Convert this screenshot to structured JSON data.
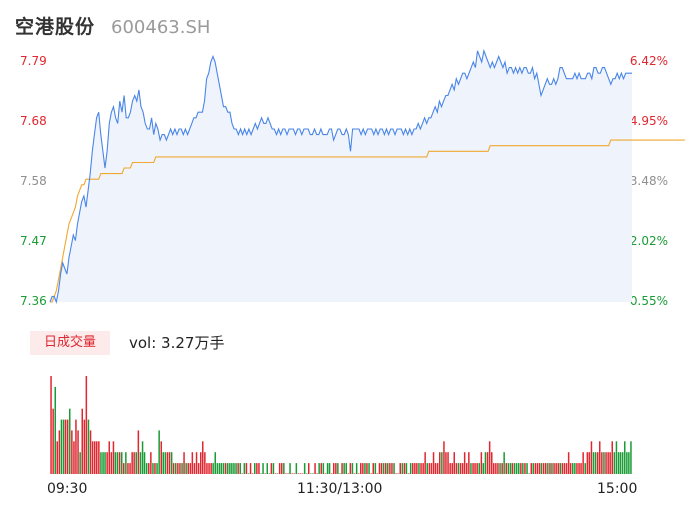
{
  "header": {
    "name": "空港股份",
    "code": "600463.SH"
  },
  "price_axis": {
    "left_labels": [
      "7.79",
      "7.68",
      "7.58",
      "7.47",
      "7.36"
    ],
    "right_labels": [
      "6.42%",
      "4.95%",
      "3.48%",
      "2.02%",
      "0.55%"
    ],
    "colors": [
      "red",
      "red",
      "gray",
      "green",
      "green"
    ]
  },
  "volume_panel": {
    "badge": "日成交量",
    "vol_label": "vol: 3.27万手"
  },
  "time_axis": {
    "labels": [
      "09:30",
      "11:30/13:00",
      "15:00"
    ]
  },
  "colors": {
    "price_line": "#4a86e8",
    "avg_line": "#f0a830",
    "area_fill": "#eef3fc",
    "up": "#e0262f",
    "down": "#1a9b35"
  },
  "chart_data": [
    {
      "type": "line",
      "x_range": [
        "09:30",
        "15:00"
      ],
      "ylim": [
        7.36,
        7.79
      ],
      "series": [
        {
          "role": "price",
          "values": [
            7.36,
            7.37,
            7.37,
            7.36,
            7.38,
            7.41,
            7.43,
            7.42,
            7.41,
            7.44,
            7.46,
            7.48,
            7.47,
            7.5,
            7.52,
            7.54,
            7.55,
            7.53,
            7.56,
            7.59,
            7.63,
            7.66,
            7.69,
            7.7,
            7.66,
            7.63,
            7.6,
            7.63,
            7.68,
            7.7,
            7.71,
            7.69,
            7.68,
            7.72,
            7.7,
            7.73,
            7.69,
            7.69,
            7.7,
            7.72,
            7.73,
            7.72,
            7.74,
            7.71,
            7.7,
            7.68,
            7.67,
            7.67,
            7.69,
            7.66,
            7.68,
            7.67,
            7.65,
            7.66,
            7.66,
            7.65,
            7.66,
            7.67,
            7.66,
            7.67,
            7.66,
            7.67,
            7.67,
            7.66,
            7.67,
            7.66,
            7.67,
            7.68,
            7.69,
            7.69,
            7.7,
            7.7,
            7.7,
            7.72,
            7.76,
            7.77,
            7.79,
            7.8,
            7.79,
            7.77,
            7.75,
            7.73,
            7.71,
            7.71,
            7.7,
            7.7,
            7.68,
            7.67,
            7.67,
            7.66,
            7.67,
            7.66,
            7.67,
            7.66,
            7.67,
            7.66,
            7.67,
            7.68,
            7.67,
            7.68,
            7.69,
            7.68,
            7.68,
            7.69,
            7.68,
            7.67,
            7.67,
            7.66,
            7.67,
            7.66,
            7.67,
            7.67,
            7.66,
            7.67,
            7.67,
            7.67,
            7.66,
            7.67,
            7.67,
            7.66,
            7.67,
            7.67,
            7.67,
            7.66,
            7.66,
            7.67,
            7.66,
            7.66,
            7.67,
            7.66,
            7.66,
            7.66,
            7.67,
            7.67,
            7.65,
            7.66,
            7.67,
            7.67,
            7.66,
            7.66,
            7.67,
            7.66,
            7.63,
            7.67,
            7.67,
            7.67,
            7.67,
            7.66,
            7.67,
            7.66,
            7.67,
            7.67,
            7.67,
            7.66,
            7.67,
            7.66,
            7.67,
            7.67,
            7.66,
            7.67,
            7.66,
            7.67,
            7.67,
            7.66,
            7.67,
            7.67,
            7.67,
            7.66,
            7.67,
            7.66,
            7.67,
            7.66,
            7.67,
            7.67,
            7.68,
            7.67,
            7.68,
            7.69,
            7.68,
            7.69,
            7.69,
            7.7,
            7.71,
            7.7,
            7.72,
            7.71,
            7.72,
            7.73,
            7.73,
            7.74,
            7.75,
            7.74,
            7.76,
            7.75,
            7.76,
            7.77,
            7.77,
            7.76,
            7.77,
            7.78,
            7.79,
            7.78,
            7.81,
            7.8,
            7.79,
            7.81,
            7.8,
            7.79,
            7.78,
            7.79,
            7.78,
            7.79,
            7.8,
            7.79,
            7.78,
            7.79,
            7.77,
            7.78,
            7.78,
            7.77,
            7.78,
            7.77,
            7.78,
            7.77,
            7.78,
            7.78,
            7.77,
            7.77,
            7.78,
            7.76,
            7.77,
            7.75,
            7.73,
            7.74,
            7.75,
            7.76,
            7.75,
            7.75,
            7.76,
            7.75,
            7.76,
            7.78,
            7.78,
            7.77,
            7.76,
            7.76,
            7.76,
            7.76,
            7.77,
            7.76,
            7.77,
            7.76,
            7.76,
            7.76,
            7.77,
            7.77,
            7.76,
            7.78,
            7.78,
            7.77,
            7.77,
            7.78,
            7.78,
            7.77,
            7.76,
            7.75,
            7.76,
            7.76,
            7.77,
            7.76,
            7.77,
            7.76,
            7.77,
            7.77,
            7.77,
            7.77
          ]
        },
        {
          "role": "average",
          "values": [
            7.36,
            7.36,
            7.37,
            7.38,
            7.4,
            7.42,
            7.44,
            7.46,
            7.48,
            7.5,
            7.51,
            7.52,
            7.53,
            7.55,
            7.56,
            7.57,
            7.57,
            7.58,
            7.58,
            7.58,
            7.58,
            7.58,
            7.58,
            7.58,
            7.59,
            7.59,
            7.59,
            7.59,
            7.59,
            7.59,
            7.59,
            7.59,
            7.59,
            7.59,
            7.59,
            7.6,
            7.6,
            7.6,
            7.6,
            7.61,
            7.61,
            7.61,
            7.61,
            7.61,
            7.61,
            7.61,
            7.61,
            7.61,
            7.61,
            7.61,
            7.62,
            7.62,
            7.62,
            7.62,
            7.62,
            7.62,
            7.62,
            7.62,
            7.62,
            7.62,
            7.62,
            7.62,
            7.62,
            7.62,
            7.62,
            7.62,
            7.62,
            7.62,
            7.62,
            7.62,
            7.62,
            7.62,
            7.62,
            7.62,
            7.62,
            7.62,
            7.62,
            7.62,
            7.62,
            7.62,
            7.62,
            7.62,
            7.62,
            7.62,
            7.62,
            7.62,
            7.62,
            7.62,
            7.62,
            7.62,
            7.62,
            7.62,
            7.62,
            7.62,
            7.62,
            7.62,
            7.62,
            7.62,
            7.62,
            7.62,
            7.62,
            7.62,
            7.62,
            7.62,
            7.62,
            7.62,
            7.62,
            7.62,
            7.62,
            7.62,
            7.62,
            7.62,
            7.62,
            7.62,
            7.62,
            7.62,
            7.62,
            7.62,
            7.62,
            7.62,
            7.62,
            7.62,
            7.62,
            7.62,
            7.62,
            7.62,
            7.62,
            7.62,
            7.62,
            7.62,
            7.62,
            7.62,
            7.62,
            7.62,
            7.62,
            7.62,
            7.62,
            7.62,
            7.62,
            7.62,
            7.62,
            7.62,
            7.62,
            7.62,
            7.62,
            7.62,
            7.62,
            7.62,
            7.62,
            7.62,
            7.62,
            7.62,
            7.62,
            7.62,
            7.62,
            7.62,
            7.62,
            7.62,
            7.62,
            7.62,
            7.62,
            7.62,
            7.62,
            7.62,
            7.62,
            7.62,
            7.62,
            7.62,
            7.62,
            7.62,
            7.62,
            7.62,
            7.62,
            7.62,
            7.62,
            7.62,
            7.62,
            7.62,
            7.62,
            7.63,
            7.63,
            7.63,
            7.63,
            7.63,
            7.63,
            7.63,
            7.63,
            7.63,
            7.63,
            7.63,
            7.63,
            7.63,
            7.63,
            7.63,
            7.63,
            7.63,
            7.63,
            7.63,
            7.63,
            7.63,
            7.63,
            7.63,
            7.63,
            7.63,
            7.63,
            7.63,
            7.63,
            7.63,
            7.64,
            7.64,
            7.64,
            7.64,
            7.64,
            7.64,
            7.64,
            7.64,
            7.64,
            7.64,
            7.64,
            7.64,
            7.64,
            7.64,
            7.64,
            7.64,
            7.64,
            7.64,
            7.64,
            7.64,
            7.64,
            7.64,
            7.64,
            7.64,
            7.64,
            7.64,
            7.64,
            7.64,
            7.64,
            7.64,
            7.64,
            7.64,
            7.64,
            7.64,
            7.64,
            7.64,
            7.64,
            7.64,
            7.64,
            7.64,
            7.64,
            7.64,
            7.64,
            7.64,
            7.64,
            7.64,
            7.64,
            7.64,
            7.64,
            7.64,
            7.64,
            7.64,
            7.64,
            7.64,
            7.64,
            7.64,
            7.64,
            7.65,
            7.65,
            7.65,
            7.65,
            7.65,
            7.65,
            7.65,
            7.65,
            7.65,
            7.65,
            7.65,
            7.65,
            7.65,
            7.65,
            7.65,
            7.65,
            7.65,
            7.65,
            7.65,
            7.65,
            7.65,
            7.65,
            7.65,
            7.65,
            7.65,
            7.65,
            7.65,
            7.65,
            7.65,
            7.65,
            7.65,
            7.65,
            7.65,
            7.65,
            7.65,
            7.65
          ]
        }
      ]
    },
    {
      "type": "bar",
      "role": "volume",
      "values": [
        9,
        6,
        8,
        3,
        4,
        5,
        5,
        5,
        5,
        6,
        4,
        3,
        5,
        4,
        2,
        6,
        5,
        9,
        5,
        4,
        3,
        3,
        3,
        3,
        2,
        2,
        2,
        2,
        3,
        2,
        3,
        2,
        2,
        2,
        2,
        1,
        2,
        1,
        1,
        2,
        2,
        2,
        4,
        2,
        3,
        2,
        1,
        1,
        2,
        1,
        1,
        1,
        4,
        3,
        2,
        2,
        2,
        2,
        2,
        1,
        1,
        1,
        1,
        1,
        2,
        1,
        1,
        1,
        2,
        1,
        2,
        1,
        2,
        3,
        2,
        1,
        1,
        1,
        1,
        2,
        1,
        1,
        1,
        1,
        1,
        1,
        1,
        1,
        1,
        1,
        1,
        1,
        0,
        1,
        1,
        0,
        1,
        0,
        1,
        1,
        1,
        0,
        1,
        0,
        1,
        0,
        1,
        1,
        0,
        0,
        1,
        1,
        1,
        0,
        0,
        1,
        0,
        0,
        1,
        0,
        0,
        0,
        1,
        0,
        1,
        0,
        0,
        1,
        0,
        1,
        1,
        1,
        0,
        1,
        1,
        0,
        1,
        1,
        1,
        0,
        1,
        1,
        1,
        0,
        1,
        1,
        0,
        1,
        0,
        1,
        1,
        1,
        1,
        1,
        0,
        1,
        1,
        0,
        1,
        1,
        1,
        1,
        1,
        1,
        1,
        1,
        0,
        0,
        1,
        1,
        1,
        1,
        0,
        1,
        1,
        1,
        1,
        1,
        1,
        1,
        2,
        1,
        1,
        1,
        2,
        1,
        1,
        2,
        2,
        3,
        2,
        2,
        1,
        1,
        2,
        1,
        1,
        1,
        1,
        2,
        1,
        2,
        1,
        1,
        1,
        1,
        1,
        2,
        1,
        2,
        2,
        3,
        2,
        1,
        1,
        1,
        1,
        1,
        2,
        1,
        1,
        1,
        1,
        1,
        1,
        1,
        1,
        1,
        1,
        1,
        0,
        1,
        1,
        1,
        1,
        1,
        1,
        1,
        1,
        1,
        1,
        1,
        1,
        1,
        1,
        1,
        1,
        1,
        1,
        2,
        1,
        1,
        1,
        1,
        1,
        1,
        2,
        1,
        2,
        2,
        3,
        2,
        2,
        2,
        3,
        2,
        2,
        2,
        2,
        2,
        3,
        2,
        3,
        2,
        2,
        2,
        3,
        2,
        2,
        3
      ],
      "up": [
        1,
        1,
        0,
        1,
        1,
        0,
        0,
        1,
        1,
        0,
        1,
        1,
        1,
        1,
        0,
        1,
        1,
        1,
        0,
        1,
        1,
        1,
        1,
        1,
        0,
        0,
        0,
        1,
        1,
        1,
        1,
        0,
        0,
        1,
        0,
        1,
        0,
        1,
        1,
        1,
        1,
        0,
        1,
        0,
        0,
        0,
        0,
        1,
        1,
        0,
        1,
        0,
        0,
        1,
        0,
        0,
        1,
        1,
        0,
        1,
        0,
        1,
        1,
        0,
        1,
        0,
        1,
        1,
        1,
        1,
        1,
        1,
        1,
        1,
        1,
        1,
        1,
        1,
        0,
        0,
        0,
        0,
        0,
        0,
        1,
        0,
        0,
        0,
        0,
        0,
        1,
        0,
        1,
        0,
        1,
        0,
        1,
        1,
        0,
        1,
        1,
        0,
        0,
        1,
        0,
        0,
        1,
        0,
        1,
        0,
        1,
        1,
        0,
        1,
        1,
        0,
        1,
        1,
        0,
        1,
        1,
        1,
        0,
        0,
        1,
        0,
        0,
        1,
        1,
        0,
        1,
        0,
        1,
        0,
        0,
        1,
        1,
        1,
        0,
        0,
        1,
        0,
        0,
        1,
        1,
        0,
        1,
        0,
        1,
        1,
        1,
        0,
        1,
        0,
        1,
        1,
        0,
        1,
        1,
        1,
        0,
        1,
        0,
        1,
        1,
        0,
        1,
        1,
        1,
        0,
        1,
        0,
        1,
        0,
        1,
        1,
        1,
        0,
        1,
        1,
        1,
        0,
        1,
        1,
        1,
        1,
        1,
        1,
        0,
        1,
        1,
        1,
        1,
        1,
        1,
        1,
        0,
        1,
        1,
        1,
        1,
        1,
        0,
        1,
        1,
        1,
        0,
        1,
        0,
        0,
        1,
        1,
        1,
        1,
        1,
        1,
        0,
        1,
        0,
        1,
        0,
        0,
        1,
        0,
        0,
        0,
        1,
        0,
        1,
        0,
        0,
        1,
        0,
        1,
        1,
        1,
        0,
        1,
        1,
        0,
        1,
        0,
        1,
        1,
        1,
        0,
        1,
        1,
        1,
        1,
        1,
        0,
        0,
        1,
        1,
        1,
        1,
        0,
        1,
        1,
        1,
        0,
        0,
        1,
        1,
        1,
        0,
        1,
        1,
        1,
        1,
        0
      ]
    }
  ]
}
